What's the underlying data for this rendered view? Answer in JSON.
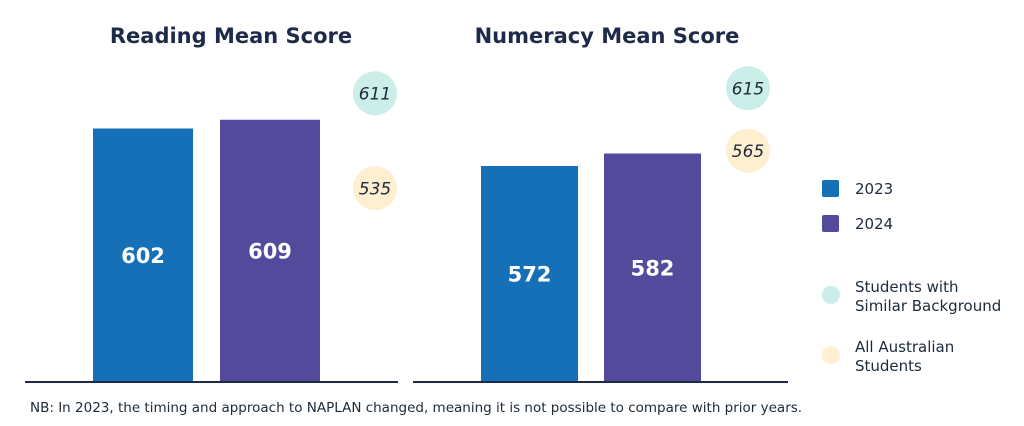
{
  "colors": {
    "bar_2023": "#1570b8",
    "bar_2024": "#544a9c",
    "similar_background": "#cbeee8",
    "all_australian": "#fdefd0",
    "axis": "#1e2a4a"
  },
  "legend": {
    "items": [
      {
        "label": "2023",
        "shape": "square",
        "color_key": "bar_2023"
      },
      {
        "label": "2024",
        "shape": "square",
        "color_key": "bar_2024"
      },
      {
        "label": "Students with Similar Background",
        "lines": [
          "Students with",
          "Similar Background"
        ],
        "shape": "circle",
        "color_key": "similar_background"
      },
      {
        "label": "All Australian Students",
        "lines": [
          "All Australian",
          "Students"
        ],
        "shape": "circle",
        "color_key": "all_australian"
      }
    ]
  },
  "footnote": "NB: In 2023, the timing and approach to NAPLAN changed, meaning it is not possible to compare with prior years.",
  "chart_data": [
    {
      "type": "bar",
      "title": "Reading Mean Score",
      "categories": [
        "2023",
        "2024"
      ],
      "series": [
        {
          "values": [
            602,
            609
          ]
        }
      ],
      "benchmarks": [
        {
          "name": "Students with Similar Background",
          "value": 611
        },
        {
          "name": "All Australian Students",
          "value": 535
        }
      ],
      "xlabel": "",
      "ylabel": "",
      "ylim": [
        400,
        640
      ],
      "grid": false
    },
    {
      "type": "bar",
      "title": "Numeracy Mean Score",
      "categories": [
        "2023",
        "2024"
      ],
      "series": [
        {
          "values": [
            572,
            582
          ]
        }
      ],
      "benchmarks": [
        {
          "name": "Students with Similar Background",
          "value": 615
        },
        {
          "name": "All Australian Students",
          "value": 565
        }
      ],
      "xlabel": "",
      "ylabel": "",
      "ylim": [
        400,
        640
      ],
      "grid": false
    }
  ]
}
